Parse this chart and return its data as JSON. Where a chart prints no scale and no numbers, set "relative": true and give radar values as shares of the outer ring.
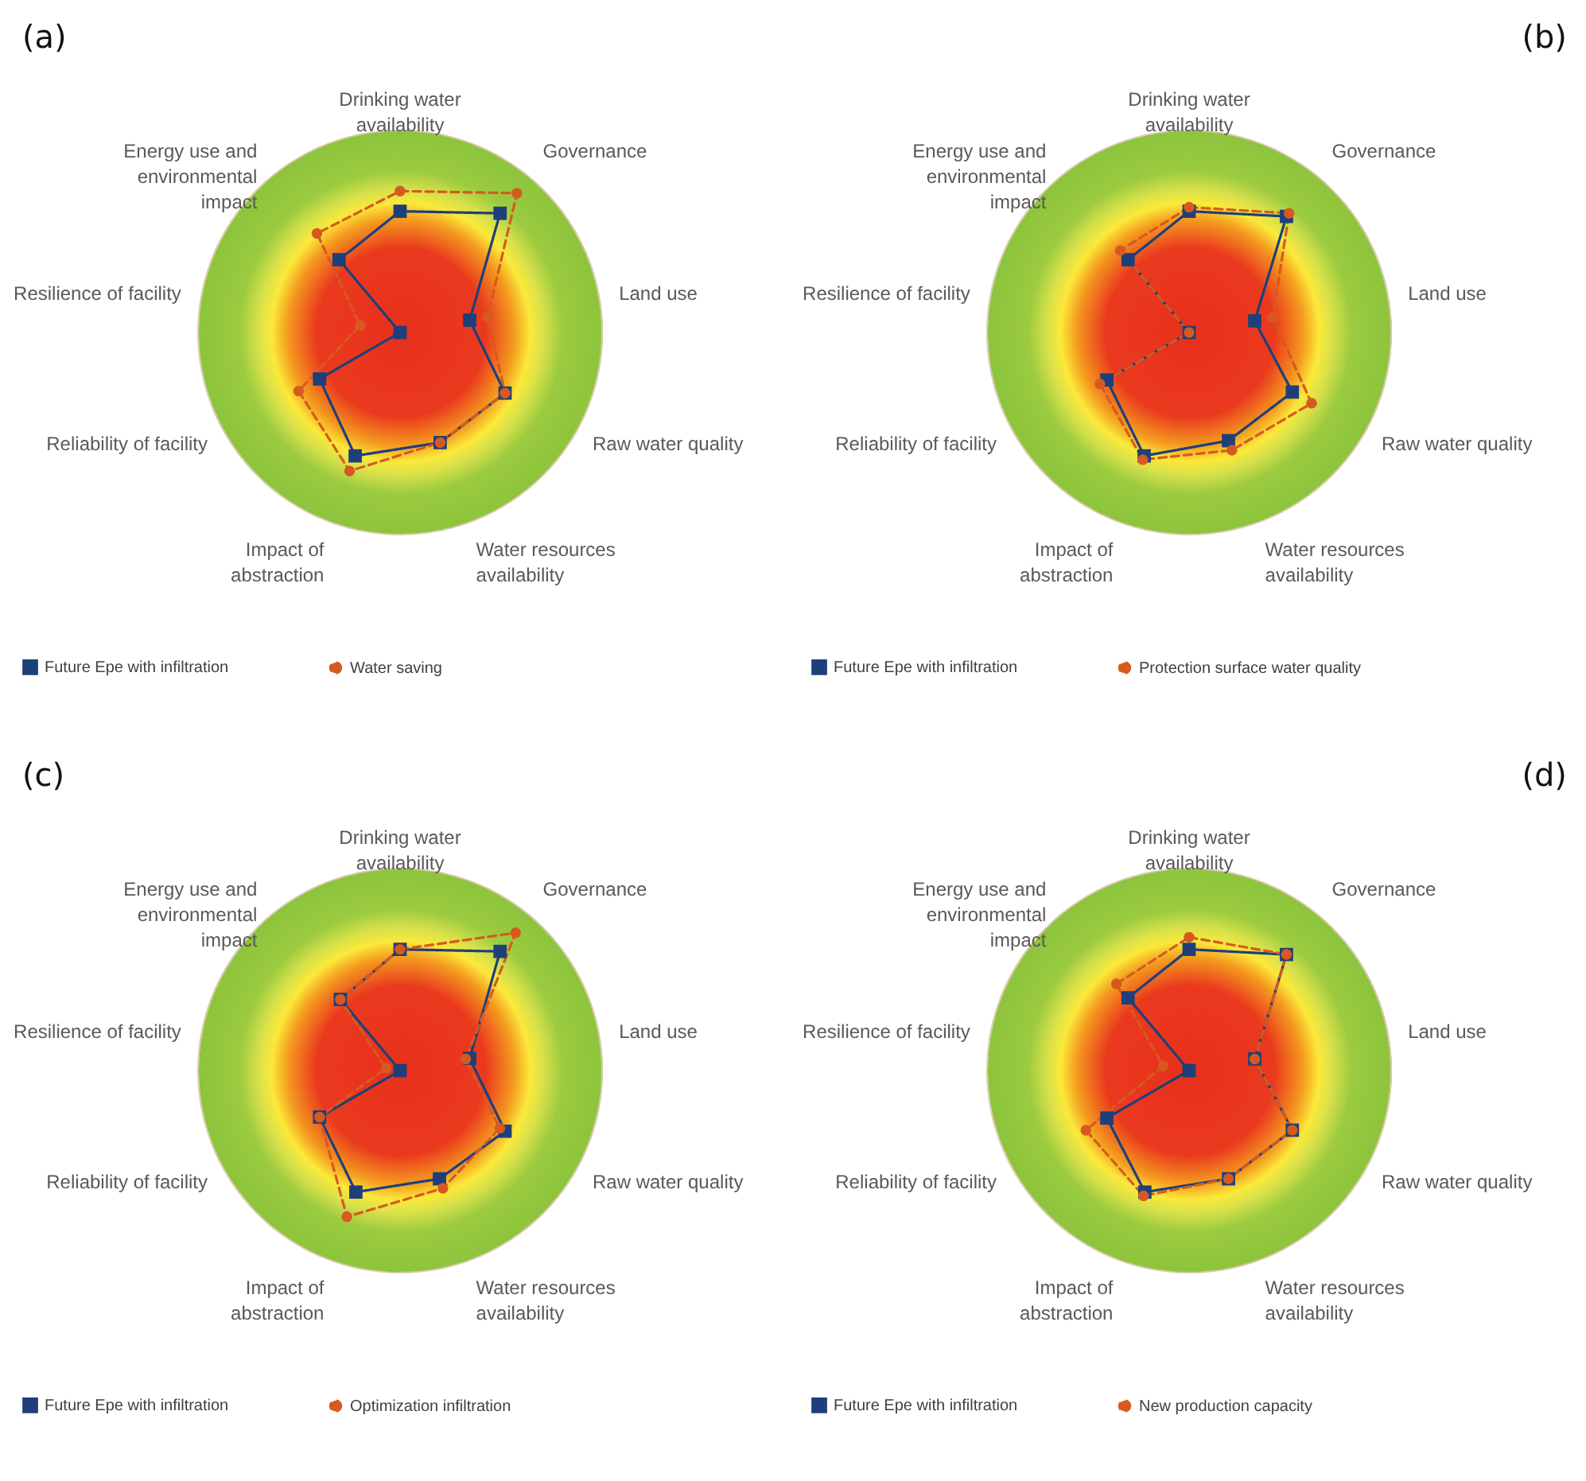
{
  "chart_data": [
    {
      "type": "radar",
      "title": "(a)",
      "relative": true,
      "legend": "bottom",
      "categories": [
        "Drinking water availability",
        "Governance",
        "Land use",
        "Raw water quality",
        "Water resources availability",
        "Impact of abstraction",
        "Reliability of facility",
        "Resilience of facility",
        "Energy use and environmental impact"
      ],
      "series": [
        {
          "name": "Future Epe with infiltration",
          "color": "#1f3f7a",
          "marker": "square",
          "line_style": "solid",
          "values": [
            0.6,
            0.77,
            0.35,
            0.6,
            0.58,
            0.65,
            0.46,
            0,
            0.47
          ]
        },
        {
          "name": "Water saving",
          "color": "#d65a1f",
          "marker": "circle",
          "line_style": "dashed",
          "values": [
            0.7,
            0.9,
            0.44,
            0.6,
            0.58,
            0.73,
            0.58,
            0.2,
            0.64
          ]
        }
      ]
    },
    {
      "type": "radar",
      "title": "(b)",
      "relative": true,
      "legend": "bottom",
      "categories": [
        "Drinking water availability",
        "Governance",
        "Land use",
        "Raw water quality",
        "Water resources availability",
        "Impact of abstraction",
        "Reliability of facility",
        "Resilience of facility",
        "Energy use and environmental impact"
      ],
      "series": [
        {
          "name": "Future Epe with infiltration",
          "color": "#1f3f7a",
          "marker": "square",
          "line_style": "solid",
          "values": [
            0.6,
            0.75,
            0.33,
            0.59,
            0.57,
            0.65,
            0.47,
            0,
            0.47
          ]
        },
        {
          "name": "Protection surface water quality",
          "color": "#d65a1f",
          "marker": "circle",
          "line_style": "dashed",
          "values": [
            0.62,
            0.77,
            0.42,
            0.7,
            0.62,
            0.67,
            0.51,
            0,
            0.53
          ]
        }
      ]
    },
    {
      "type": "radar",
      "title": "(c)",
      "relative": true,
      "legend": "bottom",
      "categories": [
        "Drinking water availability",
        "Governance",
        "Land use",
        "Raw water quality",
        "Water resources availability",
        "Impact of abstraction",
        "Reliability of facility",
        "Resilience of facility",
        "Energy use and environmental impact"
      ],
      "series": [
        {
          "name": "Future Epe with infiltration",
          "color": "#1f3f7a",
          "marker": "square",
          "line_style": "solid",
          "values": [
            0.6,
            0.77,
            0.35,
            0.6,
            0.57,
            0.64,
            0.46,
            0,
            0.46
          ]
        },
        {
          "name": "Optimization infiltration",
          "color": "#d65a1f",
          "marker": "circle",
          "line_style": "dashed",
          "values": [
            0.6,
            0.89,
            0.33,
            0.57,
            0.62,
            0.77,
            0.46,
            0.07,
            0.46
          ]
        }
      ]
    },
    {
      "type": "radar",
      "title": "(d)",
      "relative": true,
      "legend": "bottom",
      "categories": [
        "Drinking water availability",
        "Governance",
        "Land use",
        "Raw water quality",
        "Water resources availability",
        "Impact of abstraction",
        "Reliability of facility",
        "Resilience of facility",
        "Energy use and environmental impact"
      ],
      "series": [
        {
          "name": "Future Epe with infiltration",
          "color": "#1f3f7a",
          "marker": "square",
          "line_style": "solid",
          "values": [
            0.6,
            0.75,
            0.33,
            0.59,
            0.57,
            0.64,
            0.47,
            0,
            0.47
          ]
        },
        {
          "name": "New production capacity",
          "color": "#d65a1f",
          "marker": "circle",
          "line_style": "dashed",
          "values": [
            0.66,
            0.75,
            0.33,
            0.59,
            0.57,
            0.66,
            0.59,
            0.13,
            0.56
          ]
        }
      ]
    }
  ]
}
